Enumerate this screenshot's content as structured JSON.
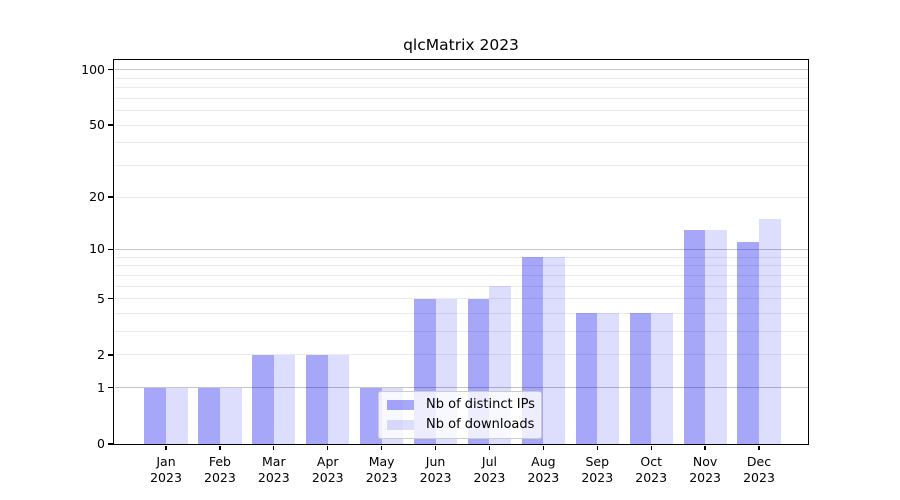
{
  "title": "qlcMatrix 2023",
  "colors": {
    "series_distinct_ips": "rgba(0,0,240,0.345)",
    "series_downloads": "rgba(0,0,240,0.135)",
    "grid_major": "#c4c4c4",
    "grid_minor": "#ebebeb",
    "axis": "#000000",
    "legend_border": "#cccccc"
  },
  "legend": {
    "items": [
      "Nb of distinct IPs",
      "Nb of downloads"
    ]
  },
  "chart_data": {
    "type": "bar",
    "title": "qlcMatrix 2023",
    "x_months": [
      "Jan",
      "Feb",
      "Mar",
      "Apr",
      "May",
      "Jun",
      "Jul",
      "Aug",
      "Sep",
      "Oct",
      "Nov",
      "Dec"
    ],
    "x_year": "2023",
    "series": [
      {
        "name": "Nb of distinct IPs",
        "color": "rgba(0,0,240,0.345)",
        "values": [
          1,
          1,
          2,
          2,
          1,
          5,
          5,
          9,
          4,
          4,
          13,
          11
        ]
      },
      {
        "name": "Nb of downloads",
        "color": "rgba(0,0,240,0.135)",
        "values": [
          1,
          1,
          2,
          2,
          1,
          5,
          6,
          9,
          4,
          4,
          13,
          15
        ]
      }
    ],
    "y_scale": "log1p",
    "y_tick_values": [
      0,
      1,
      2,
      5,
      10,
      20,
      50,
      100
    ],
    "y_major_gridlines": [
      1,
      10,
      100
    ],
    "y_minor_gridlines": [
      2,
      3,
      4,
      5,
      6,
      7,
      8,
      9,
      20,
      30,
      40,
      50,
      60,
      70,
      80,
      90
    ],
    "ylim": [
      0,
      112
    ],
    "grid": true,
    "legend_position": "lower center"
  }
}
